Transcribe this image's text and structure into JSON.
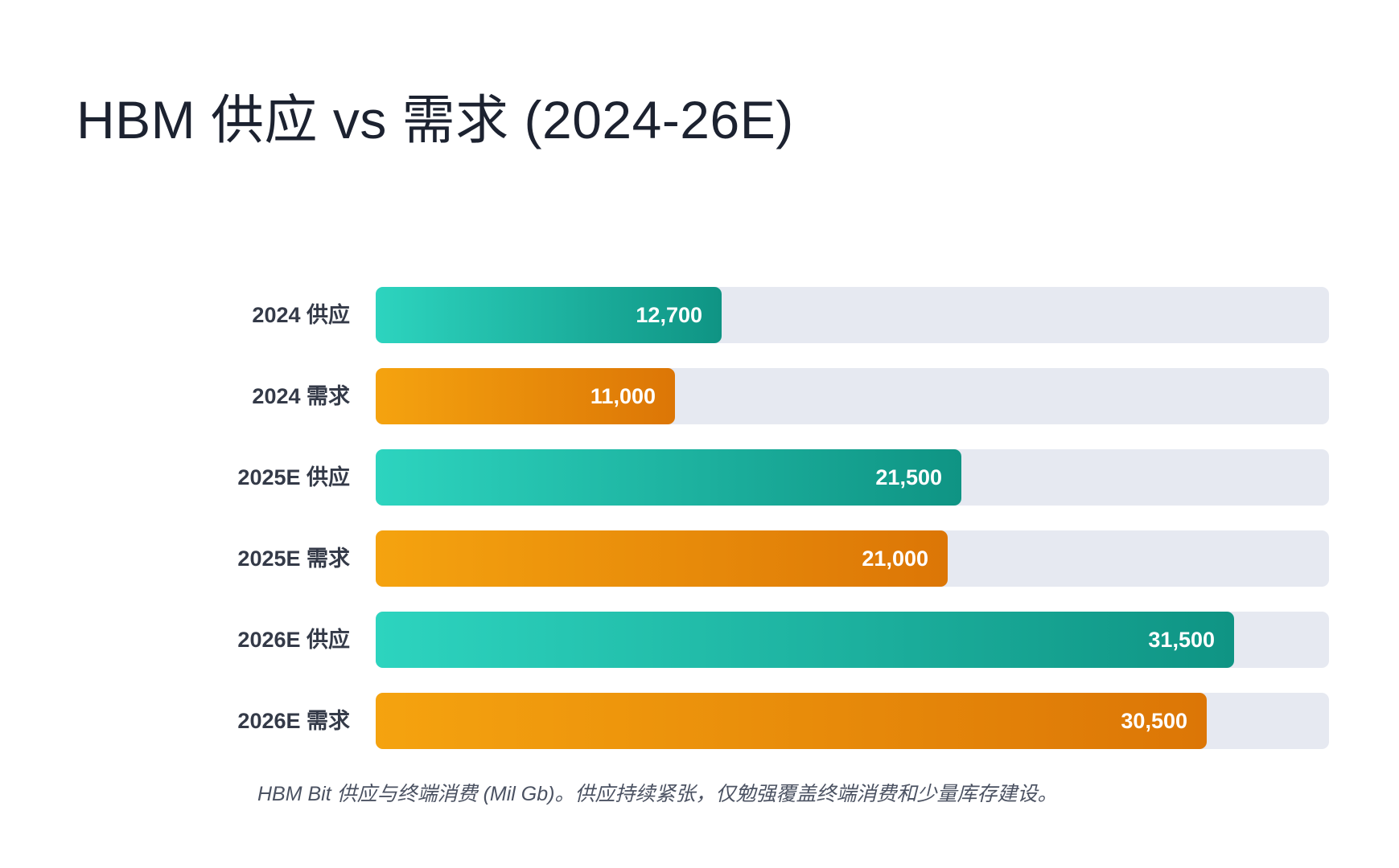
{
  "title": "HBM 供应 vs 需求 (2024-26E)",
  "caption": "HBM Bit 供应与终端消费 (Mil Gb)。供应持续紧张，仅勉强覆盖终端消费和少量库存建设。",
  "colors": {
    "supply_start": "#2dd4bf",
    "supply_end": "#0f9484",
    "demand_start": "#f5a30f",
    "demand_end": "#dc7606",
    "track": "#e6e9f1"
  },
  "chart_data": {
    "type": "bar",
    "orientation": "horizontal",
    "title": "HBM 供应 vs 需求 (2024-26E)",
    "xlim": [
      0,
      35000
    ],
    "grid": false,
    "categories": [
      "2024 供应",
      "2024 需求",
      "2025E 供应",
      "2025E 需求",
      "2026E 供应",
      "2026E 需求"
    ],
    "values": [
      12700,
      11000,
      21500,
      21000,
      31500,
      30500
    ],
    "value_labels": [
      "12,700",
      "11,000",
      "21,500",
      "21,000",
      "31,500",
      "30,500"
    ],
    "kinds": [
      "supply",
      "demand",
      "supply",
      "demand",
      "supply",
      "demand"
    ]
  }
}
